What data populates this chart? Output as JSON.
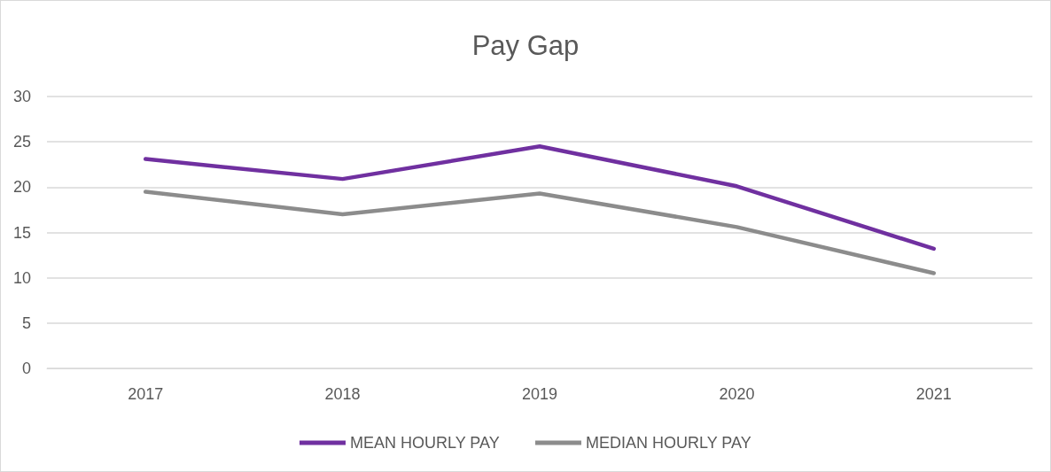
{
  "chart_data": {
    "type": "line",
    "title": "Pay Gap",
    "categories": [
      "2017",
      "2018",
      "2019",
      "2020",
      "2021"
    ],
    "series": [
      {
        "name": "MEAN HOURLY PAY",
        "color": "#7030a0",
        "values": [
          23.1,
          20.9,
          24.5,
          20.1,
          13.2
        ]
      },
      {
        "name": "MEDIAN HOURLY PAY",
        "color": "#8c8c8c",
        "values": [
          19.5,
          17.0,
          19.3,
          15.6,
          10.5
        ]
      }
    ],
    "ylim": [
      0,
      30
    ],
    "yticks": [
      0,
      5,
      10,
      15,
      20,
      25,
      30
    ],
    "grid": "y",
    "legend": "bottom",
    "marker": "none",
    "line_style": "solid"
  }
}
